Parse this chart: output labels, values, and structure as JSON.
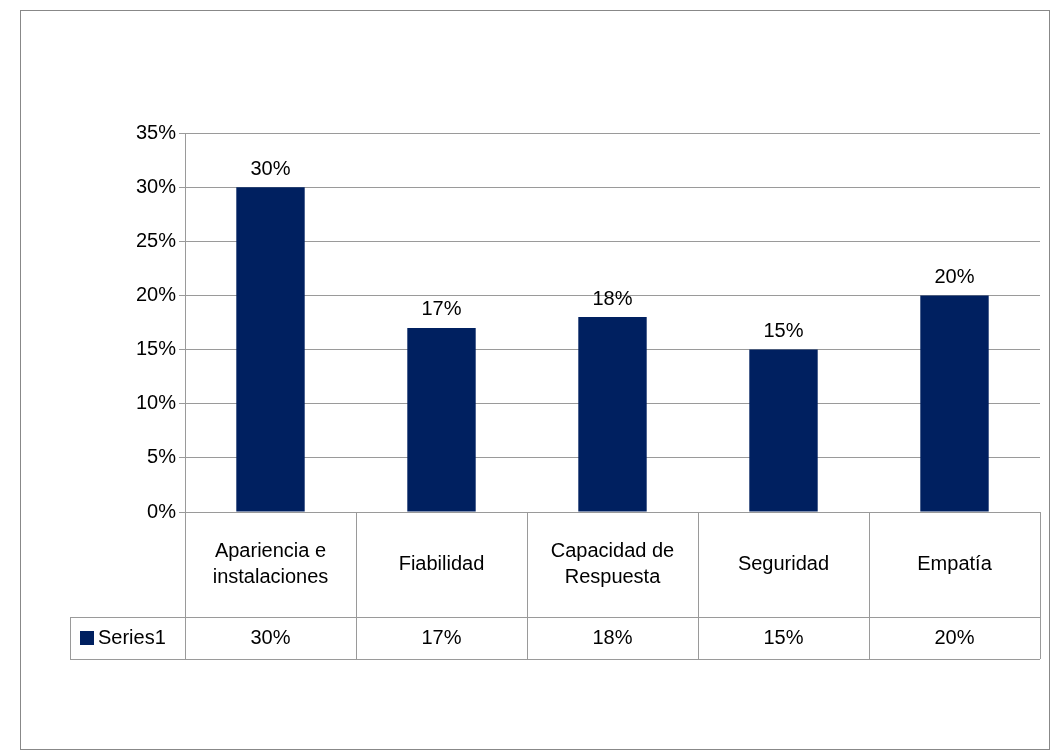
{
  "chart_data": {
    "type": "bar",
    "categories": [
      "Apariencia e instalaciones",
      "Fiabilidad",
      "Capacidad de Respuesta",
      "Seguridad",
      "Empatía"
    ],
    "series": [
      {
        "name": "Series1",
        "color": "#002060",
        "values": [
          30,
          17,
          18,
          15,
          20
        ],
        "value_labels": [
          "30%",
          "17%",
          "18%",
          "15%",
          "20%"
        ]
      }
    ],
    "ylim": [
      0,
      35
    ],
    "yticks": [
      {
        "value": 0,
        "label": "0%"
      },
      {
        "value": 5,
        "label": "5%"
      },
      {
        "value": 10,
        "label": "10%"
      },
      {
        "value": 15,
        "label": "15%"
      },
      {
        "value": 20,
        "label": "20%"
      },
      {
        "value": 25,
        "label": "25%"
      },
      {
        "value": 30,
        "label": "30%"
      },
      {
        "value": 35,
        "label": "35%"
      }
    ],
    "grid": "y",
    "legend": "bottom"
  }
}
